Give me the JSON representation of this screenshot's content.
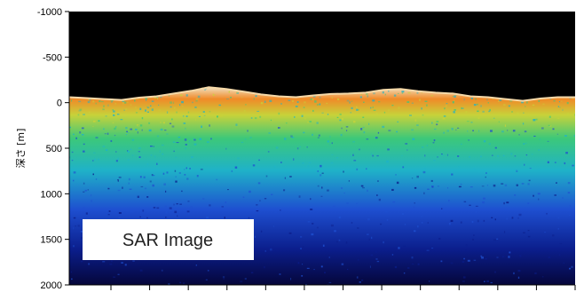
{
  "chart_data": {
    "type": "heatmap",
    "ylabel": "深さ [m]",
    "ylim": [
      -1000,
      2000
    ],
    "y_axis_inverted": true,
    "yticks": [
      -1000,
      -500,
      0,
      500,
      1000,
      1500,
      2000
    ],
    "ytick_labels": [
      "-1000",
      "-500",
      "0",
      "500",
      "1000",
      "1500",
      "2000"
    ],
    "x_tick_count": 12,
    "surface_depth_profile": [
      -60,
      -50,
      -40,
      -30,
      -55,
      -70,
      -100,
      -130,
      -170,
      -150,
      -120,
      -90,
      -70,
      -60,
      -80,
      -95,
      -100,
      -110,
      -140,
      -150,
      -125,
      -110,
      -100,
      -70,
      -60,
      -40,
      -20,
      -45,
      -60,
      -60
    ],
    "inset_label": "SAR Image",
    "colormap": [
      "#05063a",
      "#0b1e8c",
      "#1e4fd0",
      "#1fb2c8",
      "#3cc87a",
      "#c8d23a",
      "#f08a28",
      "#f0e0c0"
    ],
    "background_color": "#000000"
  }
}
